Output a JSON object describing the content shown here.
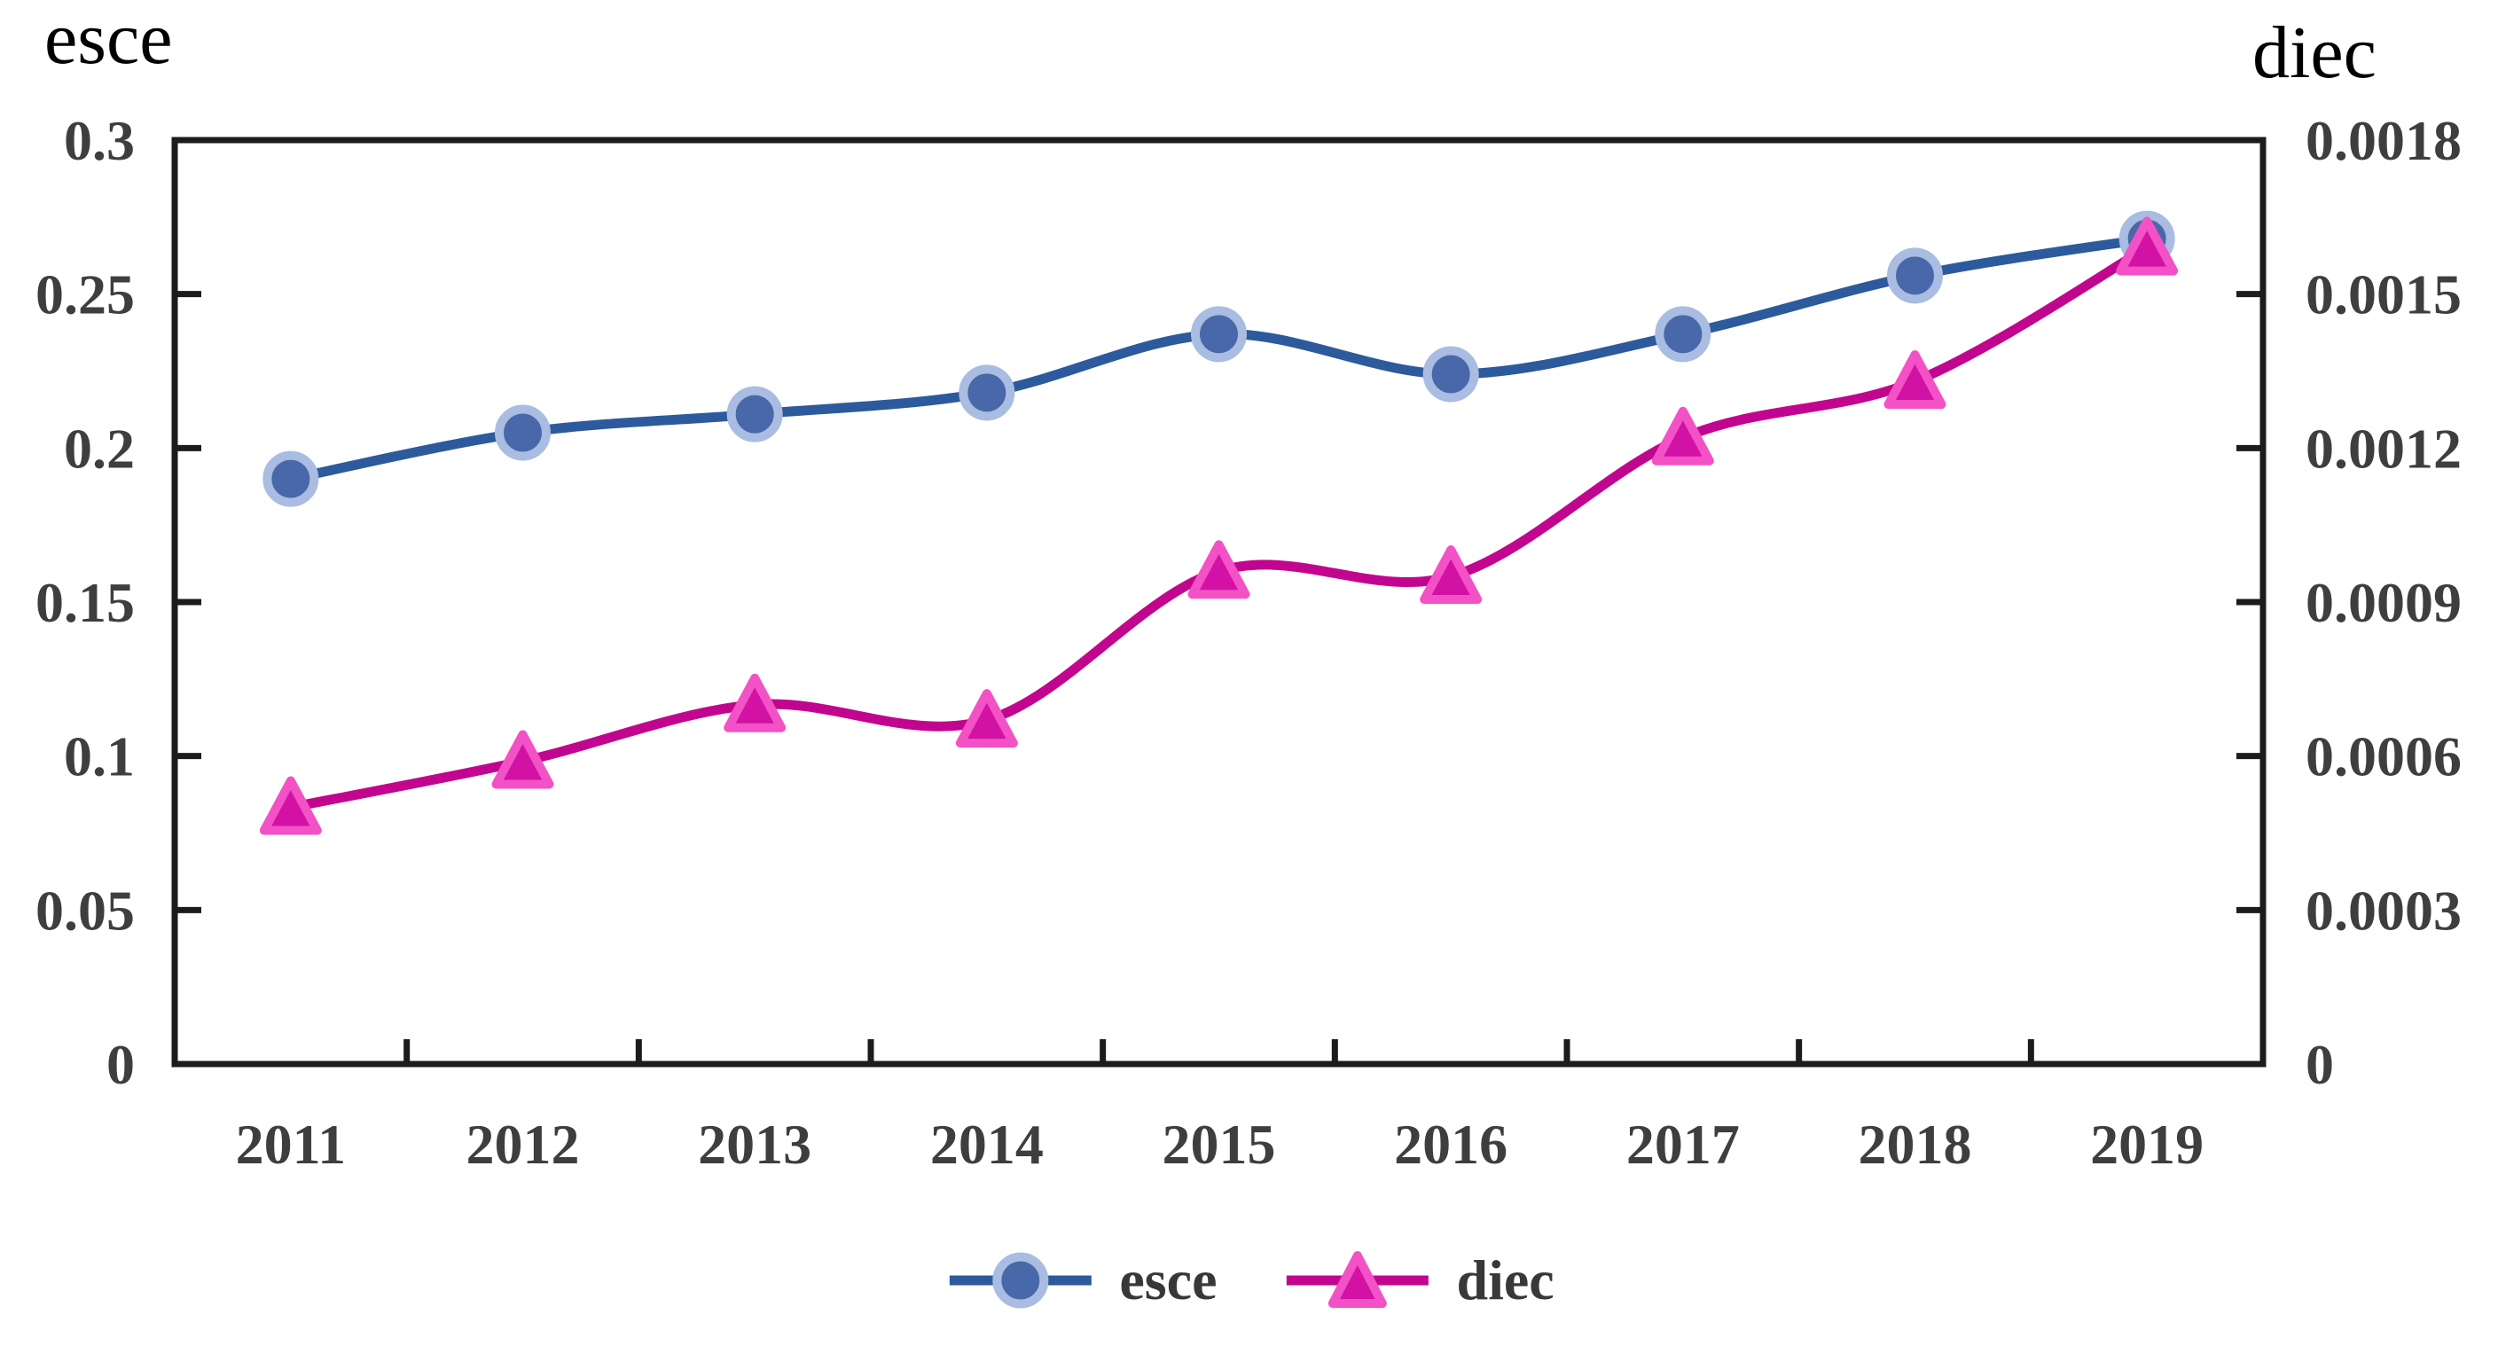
{
  "figure": {
    "background": "#ffffff",
    "axis_color": "#1c1c1c",
    "tick_label_color": "#3e3e3e",
    "title_color": "#000000"
  },
  "chart_data": {
    "type": "line",
    "x": [
      "2011",
      "2012",
      "2013",
      "2014",
      "2015",
      "2016",
      "2017",
      "2018",
      "2019"
    ],
    "series": [
      {
        "name": "esce",
        "axis": "left",
        "marker": "circle",
        "line_color": "#2D5A9C",
        "marker_fill": "#4868A9",
        "marker_edge": "#A9BCE1",
        "values": [
          0.19,
          0.205,
          0.211,
          0.218,
          0.237,
          0.224,
          0.237,
          0.256,
          0.268
        ]
      },
      {
        "name": "diec",
        "axis": "right",
        "marker": "triangle",
        "line_color": "#C2058E",
        "marker_fill": "#D112A4",
        "marker_edge": "#F351C6",
        "values": [
          0.0005,
          0.00059,
          0.0007,
          0.00067,
          0.00096,
          0.00095,
          0.00122,
          0.00133,
          0.00159
        ]
      }
    ],
    "y_left": {
      "title": "esce",
      "min": 0,
      "max": 0.3,
      "tick_step": 0.05,
      "tick_labels": [
        "0",
        "0.05",
        "0.1",
        "0.15",
        "0.2",
        "0.25",
        "0.3"
      ]
    },
    "y_right": {
      "title": "diec",
      "min": 0,
      "max": 0.0018,
      "tick_step": 0.0003,
      "tick_labels": [
        "0",
        "0.0003",
        "0.0006",
        "0.0009",
        "0.0012",
        "0.0015",
        "0.0018"
      ]
    },
    "legend": {
      "position": "bottom",
      "entries": [
        "esce",
        "diec"
      ]
    },
    "grid": false,
    "smooth_lines": true,
    "tick_direction": "in"
  }
}
